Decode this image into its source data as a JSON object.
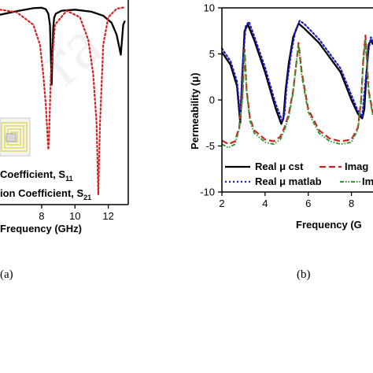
{
  "colors": {
    "black": "#000000",
    "red": "#d42020",
    "blue": "#1a1acc",
    "green": "#2e9a2e",
    "watermark": "#e6e6e6"
  },
  "chart_data": [
    {
      "panel": "(a)",
      "type": "line",
      "xlabel": "Frequency (GHz)",
      "xlim": [
        5.5,
        13.2
      ],
      "ylim": [
        -40,
        0
      ],
      "x_ticks": [
        8,
        10,
        12
      ],
      "legend": {
        "placement": "bottom-left",
        "entries": [
          {
            "prefix": "Coefficient, S",
            "sub": "11"
          },
          {
            "prefix": "ion Coefficient, S",
            "sub": "21"
          }
        ]
      },
      "series": [
        {
          "color": "#000000",
          "dash": "solid",
          "x": [
            5.5,
            6.5,
            7.5,
            8.0,
            8.25,
            8.4,
            8.5,
            8.55,
            8.6,
            8.65,
            8.7,
            8.75,
            8.85,
            9.2,
            10.0,
            11.0,
            11.7,
            12.2,
            12.5,
            12.75,
            12.9,
            13.0
          ],
          "y": [
            -2.0,
            -1.3,
            -0.7,
            -0.6,
            -0.9,
            -1.8,
            -4.0,
            -10.0,
            -16.0,
            -10.0,
            -4.5,
            -2.6,
            -1.8,
            -1.2,
            -1.0,
            -1.4,
            -2.2,
            -3.6,
            -6.0,
            -10.0,
            -4.0,
            -3.2
          ]
        },
        {
          "color": "#d42020",
          "dash": "dotted",
          "x": [
            5.5,
            6.5,
            7.5,
            7.9,
            8.1,
            8.25,
            8.35,
            8.4,
            8.45,
            8.55,
            8.8,
            9.5,
            10.3,
            10.8,
            11.1,
            11.3,
            11.4,
            11.5,
            11.7,
            12.0,
            12.5,
            13.0
          ],
          "y": [
            -1.0,
            -1.5,
            -4.0,
            -8.0,
            -14.0,
            -20.0,
            -26.0,
            -29.0,
            -26.0,
            -14.0,
            -4.0,
            -1.2,
            -2.5,
            -7.0,
            -14.0,
            -24.0,
            -38.0,
            -24.0,
            -8.0,
            -2.5,
            -0.8,
            -0.5
          ]
        }
      ]
    },
    {
      "panel": "(b)",
      "type": "line",
      "xlabel": "Frequency (G",
      "ylabel": "Permeability (μ)",
      "xlim": [
        2,
        9
      ],
      "ylim": [
        -10,
        10
      ],
      "x_ticks": [
        2,
        4,
        6,
        8
      ],
      "y_ticks": [
        -10,
        -5,
        0,
        5,
        10
      ],
      "legend": {
        "placement": "bottom",
        "entries": [
          {
            "label": "Real μ cst",
            "color": "#000000",
            "dash": "solid"
          },
          {
            "label": "Imag",
            "color": "#d42020",
            "dash": "dashed"
          },
          {
            "label": "Real μ matlab",
            "color": "#1a1acc",
            "dash": "dotted"
          },
          {
            "label": "Im",
            "color": "#2e9a2e",
            "dash": "dashdotdot"
          }
        ]
      },
      "series": [
        {
          "name": "Real μ cst",
          "color": "#000000",
          "dash": "solid",
          "x": [
            2.0,
            2.4,
            2.7,
            2.85,
            2.95,
            3.05,
            3.2,
            3.5,
            4.0,
            4.5,
            4.75,
            4.85,
            4.95,
            5.1,
            5.3,
            5.55,
            5.8,
            6.5,
            7.5,
            8.0,
            8.3,
            8.5,
            8.6,
            8.7,
            8.8,
            8.9,
            9.0
          ],
          "y": [
            5.2,
            3.8,
            1.5,
            -2.5,
            3.0,
            7.5,
            8.2,
            6.5,
            3.0,
            -1.0,
            -2.6,
            -2.0,
            1.0,
            4.0,
            6.8,
            8.3,
            7.8,
            6.2,
            3.0,
            0.0,
            -1.5,
            -2.0,
            -1.0,
            3.0,
            6.0,
            6.5,
            6.0
          ]
        },
        {
          "name": "Real μ matlab",
          "color": "#1a1acc",
          "dash": "dotted",
          "x": [
            2.0,
            2.4,
            2.7,
            2.85,
            2.95,
            3.1,
            3.25,
            3.5,
            4.0,
            4.5,
            4.8,
            4.9,
            5.0,
            5.2,
            5.4,
            5.6,
            5.8,
            6.5,
            7.5,
            8.0,
            8.3,
            8.5,
            8.65,
            8.8,
            8.9,
            9.0
          ],
          "y": [
            5.6,
            4.2,
            2.0,
            -1.8,
            3.5,
            8.0,
            8.5,
            6.9,
            3.5,
            -0.5,
            -2.3,
            -1.5,
            1.5,
            5.0,
            7.5,
            8.6,
            8.3,
            6.6,
            3.4,
            0.5,
            -1.2,
            -1.8,
            2.0,
            5.5,
            6.8,
            6.3
          ]
        },
        {
          "name": "Imag",
          "color": "#d42020",
          "dash": "dashed",
          "x": [
            2.0,
            2.3,
            2.6,
            2.8,
            2.95,
            3.05,
            3.15,
            3.3,
            3.5,
            4.0,
            4.4,
            4.7,
            4.9,
            5.1,
            5.3,
            5.45,
            5.55,
            5.7,
            6.0,
            6.5,
            7.0,
            7.5,
            8.0,
            8.3,
            8.45,
            8.55,
            8.65,
            8.8,
            9.0
          ],
          "y": [
            -4.4,
            -4.8,
            -4.5,
            -3.0,
            0.5,
            5.5,
            1.0,
            -2.0,
            -3.3,
            -4.3,
            -4.5,
            -4.0,
            -3.0,
            -1.5,
            1.0,
            4.0,
            6.2,
            3.0,
            -1.0,
            -3.3,
            -4.2,
            -4.5,
            -4.3,
            -3.0,
            0.0,
            4.5,
            7.0,
            1.0,
            -1.5
          ]
        },
        {
          "color": "#2e9a2e",
          "dash": "dashdotdot",
          "x": [
            2.0,
            2.3,
            2.6,
            2.8,
            2.95,
            3.05,
            3.15,
            3.3,
            3.5,
            4.0,
            4.4,
            4.7,
            4.9,
            5.1,
            5.3,
            5.45,
            5.55,
            5.7,
            6.0,
            6.5,
            7.0,
            7.5,
            8.0,
            8.3,
            8.45,
            8.55,
            8.65,
            8.8,
            9.0
          ],
          "y": [
            -4.8,
            -5.2,
            -4.8,
            -3.2,
            0.2,
            5.2,
            0.8,
            -2.3,
            -3.6,
            -4.6,
            -4.8,
            -4.3,
            -3.3,
            -1.8,
            0.8,
            4.0,
            6.0,
            2.6,
            -1.3,
            -3.6,
            -4.5,
            -4.8,
            -4.6,
            -3.2,
            -0.2,
            4.2,
            6.6,
            0.8,
            -1.8
          ]
        }
      ]
    }
  ]
}
